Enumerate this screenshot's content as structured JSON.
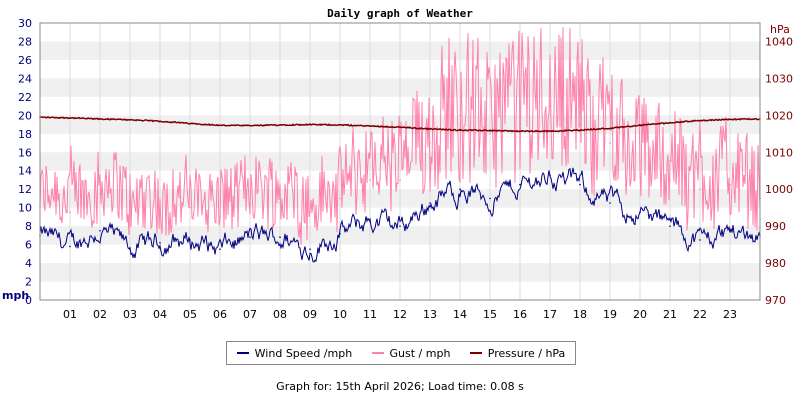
{
  "chart_data": {
    "type": "line",
    "title": "Daily graph of Weather",
    "left_axis": {
      "unit": "mph",
      "ylim": [
        0,
        30
      ],
      "ticks": [
        0,
        2,
        4,
        6,
        8,
        10,
        12,
        14,
        16,
        18,
        20,
        22,
        24,
        26,
        28,
        30
      ],
      "color": "#000080"
    },
    "right_axis": {
      "unit": "hPa",
      "ylim": [
        970,
        1045
      ],
      "ticks": [
        970,
        980,
        990,
        1000,
        1010,
        1020,
        1030,
        1040
      ],
      "color": "#7a0000"
    },
    "x": {
      "ticks": [
        "01",
        "02",
        "03",
        "04",
        "05",
        "06",
        "07",
        "08",
        "09",
        "10",
        "11",
        "12",
        "13",
        "14",
        "15",
        "16",
        "17",
        "18",
        "19",
        "20",
        "21",
        "22",
        "23"
      ],
      "xlim": [
        0,
        24
      ]
    },
    "grid": true,
    "legend_placement": "bottom",
    "hours": [
      0,
      1,
      2,
      3,
      4,
      5,
      6,
      7,
      8,
      9,
      10,
      11,
      12,
      13,
      14,
      15,
      16,
      17,
      18,
      19,
      20,
      21,
      22,
      23,
      24
    ],
    "series": [
      {
        "name": "Wind Speed /mph",
        "axis": "left",
        "color": "#000080",
        "values": [
          7,
          5.8,
          7.5,
          5.5,
          6.2,
          6.5,
          5.5,
          6.8,
          6.8,
          5.5,
          7.2,
          8.5,
          8,
          10.5,
          12,
          11,
          12.5,
          13.5,
          12.5,
          10.5,
          9.5,
          8,
          6.5,
          7.5,
          7
        ]
      },
      {
        "name": "Gust / mph",
        "axis": "left",
        "color": "#ff80aa",
        "values": [
          10,
          9.5,
          11.5,
          9,
          9.5,
          10,
          9,
          10.5,
          10.5,
          9.5,
          11,
          13,
          13,
          17,
          20,
          18,
          20,
          21,
          19,
          17,
          15,
          13,
          12,
          12.5,
          11
        ]
      },
      {
        "name": "Pressure / hPa",
        "axis": "right",
        "color": "#7a0000",
        "values": [
          1019.5,
          1019.3,
          1019,
          1018.8,
          1018.4,
          1017.8,
          1017.3,
          1017.2,
          1017.4,
          1017.5,
          1017.4,
          1017.1,
          1016.8,
          1016.3,
          1016,
          1015.9,
          1015.7,
          1015.7,
          1016,
          1016.5,
          1017.3,
          1018,
          1018.6,
          1018.9,
          1019
        ]
      }
    ]
  },
  "legend": {
    "wind": "Wind Speed /mph",
    "gust": "Gust / mph",
    "pressure": "Pressure / hPa"
  },
  "footer": {
    "text": "Graph for: 15th April 2026; Load time: 0.08 s"
  }
}
